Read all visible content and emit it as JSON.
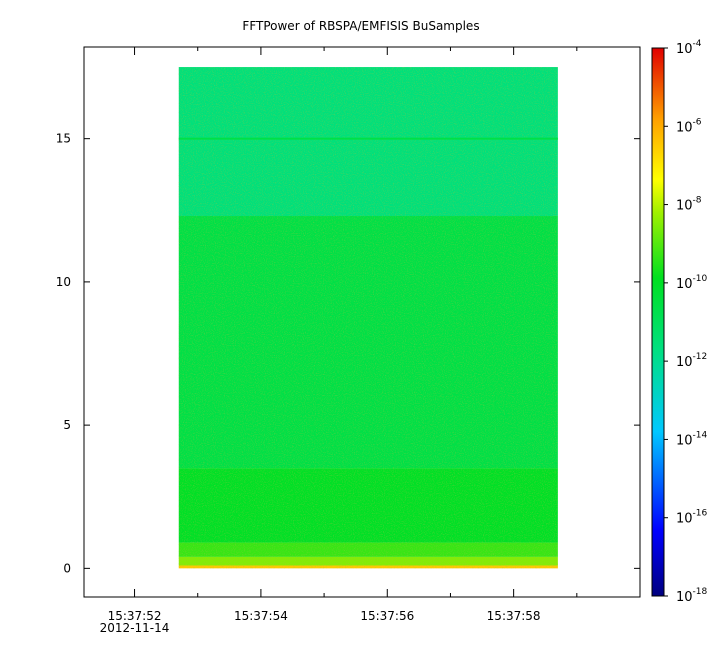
{
  "chart_data": {
    "type": "heatmap",
    "title": "FFTPower of RBSPA/EMFISIS  BuSamples",
    "xlabel": "",
    "ylabel": "",
    "x_time_range": [
      "15:37:51.2",
      "15:38:00.0"
    ],
    "x_ticks": [
      {
        "time": "15:37:52",
        "label": "15:37:52",
        "date_label": "2012-11-14"
      },
      {
        "time": "15:37:54",
        "label": "15:37:54"
      },
      {
        "time": "15:37:56",
        "label": "15:37:56"
      },
      {
        "time": "15:37:58",
        "label": "15:37:58"
      }
    ],
    "x_minor_ticks": [
      "15:37:53",
      "15:37:55",
      "15:37:57",
      "15:37:59"
    ],
    "ylim": [
      -1,
      18.2
    ],
    "y_ticks": [
      0,
      5,
      10,
      15
    ],
    "data_time_range": [
      "15:37:52.7",
      "15:37:58.7"
    ],
    "data_y_range": [
      0,
      17.5
    ],
    "colorbar": {
      "scale": "log",
      "range": [
        "1e-18",
        "1e-4"
      ],
      "ticks": [
        {
          "base": "10",
          "exp": "-4"
        },
        {
          "base": "10",
          "exp": "-6"
        },
        {
          "base": "10",
          "exp": "-8"
        },
        {
          "base": "10",
          "exp": "-10"
        },
        {
          "base": "10",
          "exp": "-12"
        },
        {
          "base": "10",
          "exp": "-14"
        },
        {
          "base": "10",
          "exp": "-16"
        },
        {
          "base": "10",
          "exp": "-18"
        }
      ],
      "colormap": "rainbow"
    },
    "bands": [
      {
        "y_from": 0,
        "y_to": 0.1,
        "power_log10": -6.5
      },
      {
        "y_from": 0.1,
        "y_to": 0.4,
        "power_log10": -8.5
      },
      {
        "y_from": 0.4,
        "y_to": 0.9,
        "power_log10": -9.3
      },
      {
        "y_from": 0.9,
        "y_to": 3.5,
        "power_log10": -10.0
      },
      {
        "y_from": 3.5,
        "y_to": 12.3,
        "power_log10": -10.6
      },
      {
        "y_from": 12.3,
        "y_to": 17.5,
        "power_log10": -11.6
      }
    ],
    "features": [
      {
        "type": "line",
        "y": 15.0,
        "power_log10": -10.6
      }
    ],
    "grid": false
  }
}
